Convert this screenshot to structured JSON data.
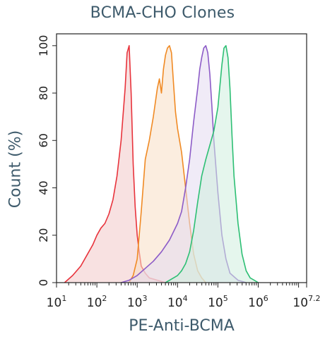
{
  "chart_data": {
    "type": "area",
    "title": "BCMA-CHO Clones",
    "xlabel": "PE-Anti-BCMA",
    "ylabel": "Count (%)",
    "x_scale": "log10",
    "xlim": [
      1,
      7.2
    ],
    "ylim": [
      0,
      105
    ],
    "x_ticks": [
      {
        "base": "10",
        "exp": "1",
        "value": 1
      },
      {
        "base": "10",
        "exp": "2",
        "value": 2
      },
      {
        "base": "10",
        "exp": "3",
        "value": 3
      },
      {
        "base": "10",
        "exp": "4",
        "value": 4
      },
      {
        "base": "10",
        "exp": "5",
        "value": 5
      },
      {
        "base": "10",
        "exp": "6",
        "value": 6
      },
      {
        "base": "10",
        "exp": "7.2",
        "value": 7.2
      }
    ],
    "y_ticks": [
      0,
      20,
      40,
      60,
      80,
      100
    ],
    "grid": false,
    "legend": "none",
    "series": [
      {
        "color": "#e8333c",
        "fill": "#f3c9c9",
        "x": [
          1.2,
          1.4,
          1.6,
          1.8,
          1.9,
          2.0,
          2.1,
          2.2,
          2.3,
          2.4,
          2.5,
          2.6,
          2.7,
          2.75,
          2.8,
          2.85,
          2.9,
          2.95,
          3.0,
          3.05,
          3.1,
          3.2,
          3.3,
          3.5,
          3.7
        ],
        "y": [
          0,
          3,
          7,
          13,
          16,
          20,
          23,
          25,
          29,
          35,
          45,
          60,
          82,
          97,
          100,
          80,
          50,
          32,
          20,
          13,
          7,
          4,
          2,
          1,
          0
        ]
      },
      {
        "color": "#f08a24",
        "fill": "#f7dfc4",
        "x": [
          2.8,
          2.9,
          3.0,
          3.1,
          3.2,
          3.3,
          3.4,
          3.5,
          3.55,
          3.6,
          3.65,
          3.7,
          3.75,
          3.8,
          3.85,
          3.9,
          3.95,
          4.0,
          4.1,
          4.2,
          4.3,
          4.4,
          4.5,
          4.6,
          4.7
        ],
        "y": [
          0,
          3,
          10,
          30,
          52,
          60,
          70,
          82,
          86,
          80,
          90,
          96,
          99,
          100,
          97,
          84,
          72,
          65,
          55,
          40,
          25,
          12,
          5,
          2,
          0
        ]
      },
      {
        "color": "#8c5bc7",
        "fill": "#e4daf0",
        "x": [
          2.6,
          2.8,
          3.0,
          3.2,
          3.4,
          3.6,
          3.8,
          4.0,
          4.1,
          4.2,
          4.3,
          4.4,
          4.5,
          4.55,
          4.6,
          4.65,
          4.7,
          4.75,
          4.8,
          4.85,
          4.9,
          5.0,
          5.1,
          5.2,
          5.3,
          5.5,
          5.7
        ],
        "y": [
          0,
          1,
          3,
          6,
          9,
          13,
          18,
          25,
          30,
          40,
          52,
          68,
          82,
          90,
          95,
          99,
          100,
          97,
          88,
          75,
          60,
          38,
          20,
          10,
          4,
          1,
          0
        ]
      },
      {
        "color": "#2dbf74",
        "fill": "#cfeede",
        "x": [
          3.7,
          3.9,
          4.0,
          4.1,
          4.2,
          4.3,
          4.4,
          4.5,
          4.6,
          4.7,
          4.8,
          4.9,
          5.0,
          5.1,
          5.15,
          5.2,
          5.25,
          5.3,
          5.35,
          5.4,
          5.5,
          5.6,
          5.7,
          5.8,
          5.9,
          6.0
        ],
        "y": [
          0,
          2,
          3,
          5,
          8,
          13,
          22,
          34,
          45,
          52,
          58,
          64,
          74,
          92,
          99,
          100,
          95,
          82,
          62,
          45,
          25,
          12,
          5,
          2,
          1,
          0
        ]
      }
    ]
  }
}
